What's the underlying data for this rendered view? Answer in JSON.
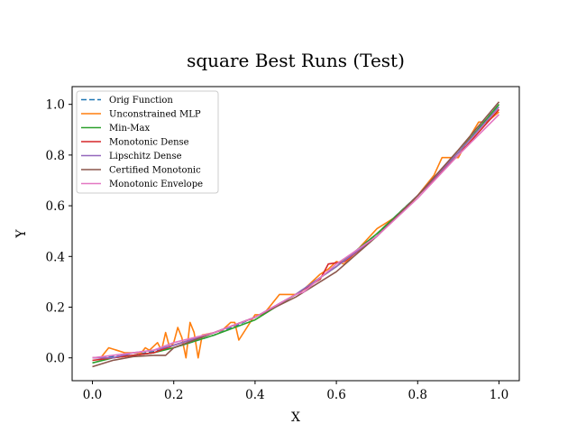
{
  "chart_data": {
    "type": "line",
    "title": "square Best Runs (Test)",
    "xlabel": "X",
    "ylabel": "Y",
    "xlim": [
      -0.05,
      1.05
    ],
    "ylim": [
      -0.09,
      1.07
    ],
    "xticks": [
      0.0,
      0.2,
      0.4,
      0.6,
      0.8,
      1.0
    ],
    "xtick_labels": [
      "0.0",
      "0.2",
      "0.4",
      "0.6",
      "0.8",
      "1.0"
    ],
    "yticks": [
      0.0,
      0.2,
      0.4,
      0.6,
      0.8,
      1.0
    ],
    "ytick_labels": [
      "0.0",
      "0.2",
      "0.4",
      "0.6",
      "0.8",
      "1.0"
    ],
    "grid": false,
    "legend_position": "top-left",
    "series": [
      {
        "name": "Orig Function",
        "color": "#1f77b4",
        "dashed": true,
        "x": [
          0.0,
          0.1,
          0.2,
          0.3,
          0.4,
          0.5,
          0.6,
          0.7,
          0.8,
          0.9,
          1.0
        ],
        "y": [
          0.0,
          0.01,
          0.04,
          0.09,
          0.16,
          0.25,
          0.36,
          0.49,
          0.64,
          0.81,
          1.0
        ]
      },
      {
        "name": "Unconstrained MLP",
        "color": "#ff7f0e",
        "dashed": false,
        "x": [
          0.0,
          0.02,
          0.04,
          0.06,
          0.08,
          0.1,
          0.12,
          0.13,
          0.14,
          0.16,
          0.17,
          0.18,
          0.19,
          0.2,
          0.21,
          0.22,
          0.23,
          0.24,
          0.25,
          0.26,
          0.27,
          0.3,
          0.32,
          0.34,
          0.35,
          0.36,
          0.38,
          0.4,
          0.42,
          0.44,
          0.46,
          0.5,
          0.52,
          0.54,
          0.56,
          0.58,
          0.6,
          0.62,
          0.66,
          0.7,
          0.72,
          0.76,
          0.8,
          0.84,
          0.86,
          0.88,
          0.9,
          0.92,
          0.95,
          0.97,
          1.0
        ],
        "y": [
          0.0,
          0.0,
          0.04,
          0.03,
          0.02,
          0.02,
          0.02,
          0.04,
          0.03,
          0.06,
          0.03,
          0.1,
          0.04,
          0.06,
          0.12,
          0.08,
          0.0,
          0.14,
          0.1,
          0.0,
          0.09,
          0.1,
          0.11,
          0.14,
          0.14,
          0.07,
          0.12,
          0.17,
          0.17,
          0.21,
          0.25,
          0.25,
          0.27,
          0.3,
          0.33,
          0.35,
          0.38,
          0.37,
          0.44,
          0.51,
          0.53,
          0.57,
          0.64,
          0.72,
          0.79,
          0.79,
          0.79,
          0.85,
          0.93,
          0.93,
          0.97
        ]
      },
      {
        "name": "Min-Max",
        "color": "#2ca02c",
        "dashed": false,
        "x": [
          0.0,
          0.05,
          0.1,
          0.15,
          0.2,
          0.3,
          0.4,
          0.5,
          0.6,
          0.7,
          0.8,
          0.9,
          1.0
        ],
        "y": [
          -0.02,
          0.0,
          0.01,
          0.02,
          0.04,
          0.09,
          0.15,
          0.25,
          0.36,
          0.49,
          0.64,
          0.81,
          1.0
        ]
      },
      {
        "name": "Monotonic Dense",
        "color": "#d62728",
        "dashed": false,
        "x": [
          0.0,
          0.05,
          0.1,
          0.15,
          0.2,
          0.3,
          0.4,
          0.5,
          0.56,
          0.58,
          0.62,
          0.7,
          0.8,
          0.9,
          1.0
        ],
        "y": [
          -0.01,
          0.0,
          0.01,
          0.02,
          0.05,
          0.1,
          0.16,
          0.25,
          0.31,
          0.37,
          0.38,
          0.48,
          0.64,
          0.8,
          0.98
        ]
      },
      {
        "name": "Lipschitz Dense",
        "color": "#9467bd",
        "dashed": false,
        "x": [
          0.0,
          0.05,
          0.1,
          0.15,
          0.2,
          0.3,
          0.4,
          0.5,
          0.6,
          0.7,
          0.8,
          0.9,
          1.0
        ],
        "y": [
          0.0,
          0.0,
          0.02,
          0.03,
          0.05,
          0.1,
          0.16,
          0.25,
          0.36,
          0.48,
          0.64,
          0.81,
          0.99
        ]
      },
      {
        "name": "Certified Monotonic",
        "color": "#8c564b",
        "dashed": false,
        "x": [
          0.0,
          0.05,
          0.1,
          0.15,
          0.18,
          0.2,
          0.3,
          0.4,
          0.5,
          0.6,
          0.7,
          0.8,
          0.9,
          1.0
        ],
        "y": [
          -0.035,
          -0.01,
          0.005,
          0.01,
          0.01,
          0.04,
          0.1,
          0.16,
          0.24,
          0.34,
          0.48,
          0.64,
          0.82,
          1.01
        ]
      },
      {
        "name": "Monotonic Envelope",
        "color": "#e377c2",
        "dashed": false,
        "x": [
          0.0,
          0.05,
          0.1,
          0.15,
          0.2,
          0.3,
          0.4,
          0.5,
          0.52,
          0.6,
          0.7,
          0.8,
          0.9,
          1.0
        ],
        "y": [
          0.0,
          0.01,
          0.02,
          0.03,
          0.06,
          0.1,
          0.16,
          0.25,
          0.26,
          0.37,
          0.48,
          0.63,
          0.8,
          0.96
        ]
      }
    ]
  }
}
